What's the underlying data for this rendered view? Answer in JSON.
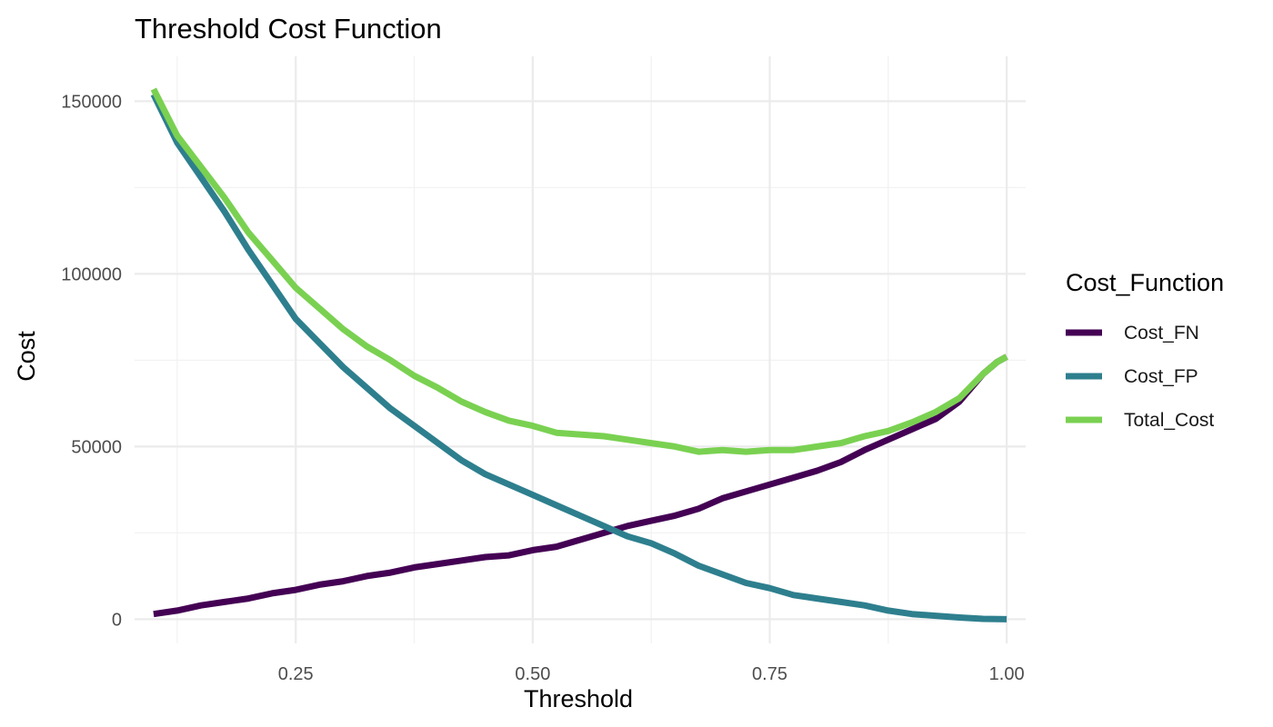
{
  "chart_data": {
    "type": "line",
    "title": "Threshold Cost Function",
    "xlabel": "Threshold",
    "ylabel": "Cost",
    "xlim": [
      0.08,
      1.02
    ],
    "ylim": [
      -7000,
      163000
    ],
    "x_ticks": [
      0.25,
      0.5,
      0.75,
      1.0
    ],
    "x_tick_labels": [
      "0.25",
      "0.50",
      "0.75",
      "1.00"
    ],
    "y_ticks": [
      0,
      50000,
      100000,
      150000
    ],
    "y_tick_labels": [
      "0",
      "50000",
      "100000",
      "150000"
    ],
    "grid": true,
    "legend": {
      "title": "Cost_Function",
      "position": "right"
    },
    "series": [
      {
        "name": "Cost_FN",
        "color": "#440154",
        "points": [
          [
            0.1,
            1500
          ],
          [
            0.125,
            2500
          ],
          [
            0.15,
            4000
          ],
          [
            0.175,
            5000
          ],
          [
            0.2,
            6000
          ],
          [
            0.225,
            7500
          ],
          [
            0.25,
            8500
          ],
          [
            0.275,
            10000
          ],
          [
            0.3,
            11000
          ],
          [
            0.325,
            12500
          ],
          [
            0.35,
            13500
          ],
          [
            0.375,
            15000
          ],
          [
            0.4,
            16000
          ],
          [
            0.425,
            17000
          ],
          [
            0.45,
            18000
          ],
          [
            0.475,
            18500
          ],
          [
            0.5,
            20000
          ],
          [
            0.525,
            21000
          ],
          [
            0.55,
            23000
          ],
          [
            0.575,
            25000
          ],
          [
            0.6,
            27000
          ],
          [
            0.625,
            28500
          ],
          [
            0.65,
            30000
          ],
          [
            0.675,
            32000
          ],
          [
            0.7,
            35000
          ],
          [
            0.725,
            37000
          ],
          [
            0.75,
            39000
          ],
          [
            0.775,
            41000
          ],
          [
            0.8,
            43000
          ],
          [
            0.825,
            45500
          ],
          [
            0.85,
            49000
          ],
          [
            0.875,
            52000
          ],
          [
            0.9,
            55000
          ],
          [
            0.925,
            58000
          ],
          [
            0.95,
            63000
          ],
          [
            0.975,
            71000
          ],
          [
            0.99,
            74500
          ],
          [
            1.0,
            76000
          ]
        ]
      },
      {
        "name": "Cost_FP",
        "color": "#2e7f8e",
        "points": [
          [
            0.1,
            152000
          ],
          [
            0.125,
            138000
          ],
          [
            0.15,
            128000
          ],
          [
            0.175,
            118000
          ],
          [
            0.2,
            107000
          ],
          [
            0.225,
            97000
          ],
          [
            0.25,
            87000
          ],
          [
            0.275,
            80000
          ],
          [
            0.3,
            73000
          ],
          [
            0.325,
            67000
          ],
          [
            0.35,
            61000
          ],
          [
            0.375,
            56000
          ],
          [
            0.4,
            51000
          ],
          [
            0.425,
            46000
          ],
          [
            0.45,
            42000
          ],
          [
            0.475,
            39000
          ],
          [
            0.5,
            36000
          ],
          [
            0.525,
            33000
          ],
          [
            0.55,
            30000
          ],
          [
            0.575,
            27000
          ],
          [
            0.6,
            24000
          ],
          [
            0.625,
            22000
          ],
          [
            0.65,
            19000
          ],
          [
            0.675,
            15500
          ],
          [
            0.7,
            13000
          ],
          [
            0.725,
            10500
          ],
          [
            0.75,
            9000
          ],
          [
            0.775,
            7000
          ],
          [
            0.8,
            6000
          ],
          [
            0.825,
            5000
          ],
          [
            0.85,
            4000
          ],
          [
            0.875,
            2500
          ],
          [
            0.9,
            1500
          ],
          [
            0.925,
            1000
          ],
          [
            0.95,
            500
          ],
          [
            0.975,
            100
          ],
          [
            1.0,
            0
          ]
        ]
      },
      {
        "name": "Total_Cost",
        "color": "#7ad151",
        "points": [
          [
            0.1,
            153500
          ],
          [
            0.125,
            140000
          ],
          [
            0.15,
            131000
          ],
          [
            0.175,
            122000
          ],
          [
            0.2,
            112000
          ],
          [
            0.225,
            104000
          ],
          [
            0.25,
            96000
          ],
          [
            0.275,
            90000
          ],
          [
            0.3,
            84000
          ],
          [
            0.325,
            79000
          ],
          [
            0.35,
            75000
          ],
          [
            0.375,
            70500
          ],
          [
            0.4,
            67000
          ],
          [
            0.425,
            63000
          ],
          [
            0.45,
            60000
          ],
          [
            0.475,
            57500
          ],
          [
            0.5,
            56000
          ],
          [
            0.525,
            54000
          ],
          [
            0.55,
            53500
          ],
          [
            0.575,
            53000
          ],
          [
            0.6,
            52000
          ],
          [
            0.625,
            51000
          ],
          [
            0.65,
            50000
          ],
          [
            0.675,
            48500
          ],
          [
            0.7,
            49000
          ],
          [
            0.725,
            48500
          ],
          [
            0.75,
            49000
          ],
          [
            0.775,
            49000
          ],
          [
            0.8,
            50000
          ],
          [
            0.825,
            51000
          ],
          [
            0.85,
            53000
          ],
          [
            0.875,
            54500
          ],
          [
            0.9,
            57000
          ],
          [
            0.925,
            60000
          ],
          [
            0.95,
            64000
          ],
          [
            0.975,
            71000
          ],
          [
            0.99,
            74500
          ],
          [
            1.0,
            76000
          ]
        ]
      }
    ]
  }
}
